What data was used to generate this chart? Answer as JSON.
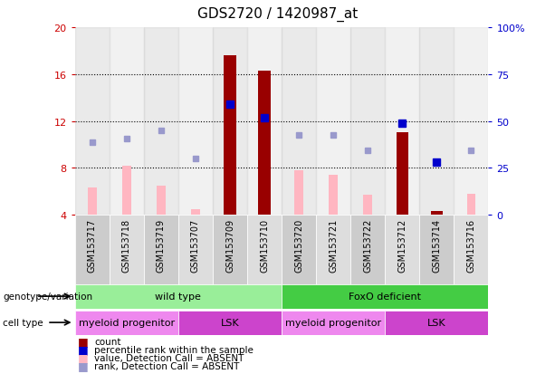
{
  "title": "GDS2720 / 1420987_at",
  "samples": [
    "GSM153717",
    "GSM153718",
    "GSM153719",
    "GSM153707",
    "GSM153709",
    "GSM153710",
    "GSM153720",
    "GSM153721",
    "GSM153722",
    "GSM153712",
    "GSM153714",
    "GSM153716"
  ],
  "count_values": [
    null,
    null,
    null,
    null,
    17.6,
    16.3,
    null,
    null,
    null,
    11.0,
    4.3,
    null
  ],
  "count_absent_values": [
    6.3,
    8.2,
    6.5,
    4.5,
    null,
    null,
    7.8,
    7.4,
    5.7,
    null,
    null,
    5.8
  ],
  "rank_present_values": [
    null,
    null,
    null,
    null,
    13.4,
    12.3,
    null,
    null,
    null,
    11.8,
    8.5,
    null
  ],
  "rank_absent_values": [
    10.2,
    10.5,
    11.2,
    8.8,
    null,
    null,
    10.8,
    10.8,
    9.5,
    null,
    null,
    9.5
  ],
  "ylim": [
    4,
    20
  ],
  "yticks": [
    4,
    8,
    12,
    16,
    20
  ],
  "y2labels": [
    "0",
    "25",
    "50",
    "75",
    "100%"
  ],
  "bar_color_present": "#990000",
  "bar_color_absent": "#FFB6C1",
  "dot_color_present": "#0000CC",
  "dot_color_absent": "#9999CC",
  "genotype_groups": [
    {
      "label": "wild type",
      "start": 0,
      "end": 5,
      "color": "#99EE99"
    },
    {
      "label": "FoxO deficient",
      "start": 6,
      "end": 11,
      "color": "#44CC44"
    }
  ],
  "cell_type_groups": [
    {
      "label": "myeloid progenitor",
      "start": 0,
      "end": 2,
      "color": "#EE88EE"
    },
    {
      "label": "LSK",
      "start": 3,
      "end": 5,
      "color": "#CC44CC"
    },
    {
      "label": "myeloid progenitor",
      "start": 6,
      "end": 8,
      "color": "#EE88EE"
    },
    {
      "label": "LSK",
      "start": 9,
      "end": 11,
      "color": "#CC44CC"
    }
  ],
  "legend_items": [
    {
      "label": "count",
      "color": "#990000"
    },
    {
      "label": "percentile rank within the sample",
      "color": "#0000CC"
    },
    {
      "label": "value, Detection Call = ABSENT",
      "color": "#FFB6C1"
    },
    {
      "label": "rank, Detection Call = ABSENT",
      "color": "#9999CC"
    }
  ],
  "left_label_color": "#CC0000",
  "right_label_color": "#0000CC",
  "col_bg_even": "#CCCCCC",
  "col_bg_odd": "#DDDDDD"
}
